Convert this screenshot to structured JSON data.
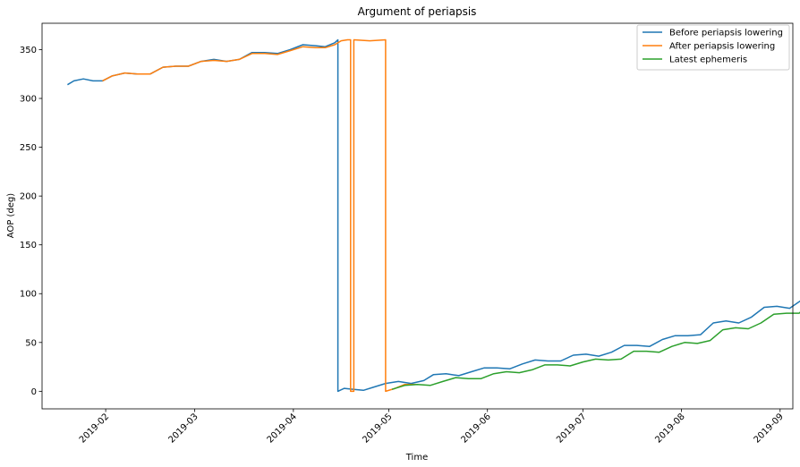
{
  "chart_data": {
    "type": "line",
    "title": "Argument of periapsis",
    "xlabel": "Time",
    "ylabel": "AOP (deg)",
    "xlim": [
      "2019-01-12",
      "2019-09-05"
    ],
    "ylim": [
      -18,
      377
    ],
    "x_ticks": [
      "2019-02",
      "2019-03",
      "2019-04",
      "2019-05",
      "2019-06",
      "2019-07",
      "2019-08",
      "2019-09"
    ],
    "y_ticks": [
      0,
      50,
      100,
      150,
      200,
      250,
      300,
      350
    ],
    "legend_position": "top-right",
    "grid": false,
    "series": [
      {
        "name": "Before periapsis lowering",
        "color": "#1f77b4",
        "points": [
          [
            "2019-01-20",
            314
          ],
          [
            "2019-01-22",
            318
          ],
          [
            "2019-01-25",
            320
          ],
          [
            "2019-01-28",
            318
          ],
          [
            "2019-01-31",
            318
          ],
          [
            "2019-02-03",
            323
          ],
          [
            "2019-02-07",
            326
          ],
          [
            "2019-02-11",
            325
          ],
          [
            "2019-02-15",
            325
          ],
          [
            "2019-02-19",
            332
          ],
          [
            "2019-02-23",
            333
          ],
          [
            "2019-02-27",
            333
          ],
          [
            "2019-03-03",
            338
          ],
          [
            "2019-03-07",
            340
          ],
          [
            "2019-03-11",
            338
          ],
          [
            "2019-03-15",
            340
          ],
          [
            "2019-03-19",
            347
          ],
          [
            "2019-03-23",
            347
          ],
          [
            "2019-03-27",
            346
          ],
          [
            "2019-03-31",
            350
          ],
          [
            "2019-04-04",
            355
          ],
          [
            "2019-04-08",
            354
          ],
          [
            "2019-04-11",
            353
          ],
          [
            "2019-04-14",
            357
          ],
          [
            "2019-04-15",
            360
          ],
          [
            "2019-04-15",
            0
          ],
          [
            "2019-04-17",
            3
          ],
          [
            "2019-04-20",
            2
          ],
          [
            "2019-04-23",
            1
          ],
          [
            "2019-04-26",
            4
          ],
          [
            "2019-04-30",
            8
          ],
          [
            "2019-05-04",
            10
          ],
          [
            "2019-05-08",
            8
          ],
          [
            "2019-05-12",
            11
          ],
          [
            "2019-05-15",
            17
          ],
          [
            "2019-05-19",
            18
          ],
          [
            "2019-05-23",
            16
          ],
          [
            "2019-05-27",
            20
          ],
          [
            "2019-05-31",
            24
          ],
          [
            "2019-06-04",
            24
          ],
          [
            "2019-06-08",
            23
          ],
          [
            "2019-06-12",
            28
          ],
          [
            "2019-06-16",
            32
          ],
          [
            "2019-06-20",
            31
          ],
          [
            "2019-06-24",
            31
          ],
          [
            "2019-06-28",
            37
          ],
          [
            "2019-07-02",
            38
          ],
          [
            "2019-07-06",
            36
          ],
          [
            "2019-07-10",
            40
          ],
          [
            "2019-07-14",
            47
          ],
          [
            "2019-07-18",
            47
          ],
          [
            "2019-07-22",
            46
          ],
          [
            "2019-07-26",
            53
          ],
          [
            "2019-07-30",
            57
          ],
          [
            "2019-08-03",
            57
          ],
          [
            "2019-08-07",
            58
          ],
          [
            "2019-08-11",
            70
          ],
          [
            "2019-08-15",
            72
          ],
          [
            "2019-08-19",
            70
          ],
          [
            "2019-08-23",
            76
          ],
          [
            "2019-08-27",
            86
          ],
          [
            "2019-08-31",
            87
          ],
          [
            "2019-09-04",
            85
          ],
          [
            "2019-09-08",
            94
          ],
          [
            "2019-09-12",
            105
          ]
        ]
      },
      {
        "name": "After periapsis lowering",
        "color": "#ff7f0e",
        "points": [
          [
            "2019-01-31",
            318
          ],
          [
            "2019-02-03",
            323
          ],
          [
            "2019-02-07",
            326
          ],
          [
            "2019-02-11",
            325
          ],
          [
            "2019-02-15",
            325
          ],
          [
            "2019-02-19",
            332
          ],
          [
            "2019-02-23",
            333
          ],
          [
            "2019-02-27",
            333
          ],
          [
            "2019-03-03",
            338
          ],
          [
            "2019-03-07",
            339
          ],
          [
            "2019-03-11",
            338
          ],
          [
            "2019-03-15",
            340
          ],
          [
            "2019-03-19",
            346
          ],
          [
            "2019-03-23",
            346
          ],
          [
            "2019-03-27",
            345
          ],
          [
            "2019-03-31",
            349
          ],
          [
            "2019-04-04",
            353
          ],
          [
            "2019-04-08",
            352
          ],
          [
            "2019-04-11",
            352
          ],
          [
            "2019-04-14",
            355
          ],
          [
            "2019-04-16",
            359
          ],
          [
            "2019-04-18",
            360
          ],
          [
            "2019-04-19",
            360
          ],
          [
            "2019-04-19",
            0
          ],
          [
            "2019-04-20",
            0
          ],
          [
            "2019-04-20",
            360
          ],
          [
            "2019-04-25",
            359
          ],
          [
            "2019-04-30",
            360
          ],
          [
            "2019-04-30",
            0
          ],
          [
            "2019-05-03",
            3
          ],
          [
            "2019-05-06",
            7
          ],
          [
            "2019-05-10",
            7
          ]
        ]
      },
      {
        "name": "Latest ephemeris",
        "color": "#2ca02c",
        "points": [
          [
            "2019-05-02",
            2
          ],
          [
            "2019-05-06",
            6
          ],
          [
            "2019-05-10",
            7
          ],
          [
            "2019-05-14",
            6
          ],
          [
            "2019-05-18",
            10
          ],
          [
            "2019-05-22",
            14
          ],
          [
            "2019-05-26",
            13
          ],
          [
            "2019-05-30",
            13
          ],
          [
            "2019-06-03",
            18
          ],
          [
            "2019-06-07",
            20
          ],
          [
            "2019-06-11",
            19
          ],
          [
            "2019-06-15",
            22
          ],
          [
            "2019-06-19",
            27
          ],
          [
            "2019-06-23",
            27
          ],
          [
            "2019-06-27",
            26
          ],
          [
            "2019-07-01",
            30
          ],
          [
            "2019-07-05",
            33
          ],
          [
            "2019-07-09",
            32
          ],
          [
            "2019-07-13",
            33
          ],
          [
            "2019-07-17",
            41
          ],
          [
            "2019-07-21",
            41
          ],
          [
            "2019-07-25",
            40
          ],
          [
            "2019-07-29",
            46
          ],
          [
            "2019-08-02",
            50
          ],
          [
            "2019-08-06",
            49
          ],
          [
            "2019-08-10",
            52
          ],
          [
            "2019-08-14",
            63
          ],
          [
            "2019-08-18",
            65
          ],
          [
            "2019-08-22",
            64
          ],
          [
            "2019-08-26",
            70
          ],
          [
            "2019-08-30",
            79
          ],
          [
            "2019-09-03",
            80
          ],
          [
            "2019-09-07",
            80
          ],
          [
            "2019-09-11",
            92
          ],
          [
            "2019-09-14",
            101
          ]
        ]
      }
    ]
  }
}
